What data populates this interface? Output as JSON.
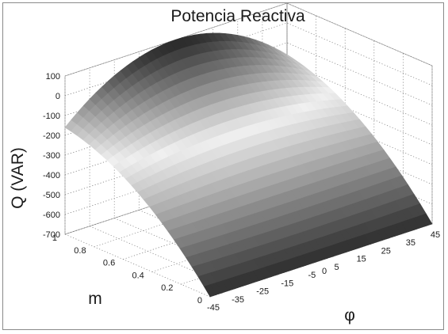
{
  "chart_data": {
    "type": "surface",
    "title": "Potencia Reactiva",
    "xlabel": "φ",
    "ylabel": "m",
    "zlabel": "Q (VAR)",
    "x_ticks": [
      -45,
      -35,
      -25,
      -15,
      -5,
      0,
      5,
      15,
      25,
      35,
      45
    ],
    "y_ticks": [
      0,
      0.2,
      0.4,
      0.6,
      0.8,
      1
    ],
    "z_ticks": [
      100,
      0,
      -100,
      -200,
      -300,
      -400,
      -500,
      -600,
      -700
    ],
    "x_range": [
      -45,
      45
    ],
    "y_range": [
      0,
      1
    ],
    "z_range": [
      -700,
      100
    ],
    "grid": true,
    "colormap": "gray",
    "surface_samples": {
      "description_axes": "Q(m, φ) at sampled grid points",
      "phi": [
        -45,
        0,
        45
      ],
      "m": [
        0,
        0.5,
        1
      ],
      "Q": [
        [
          -700,
          -700,
          -700
        ],
        [
          -330,
          -290,
          -330
        ],
        [
          -160,
          100,
          -160
        ]
      ]
    }
  }
}
